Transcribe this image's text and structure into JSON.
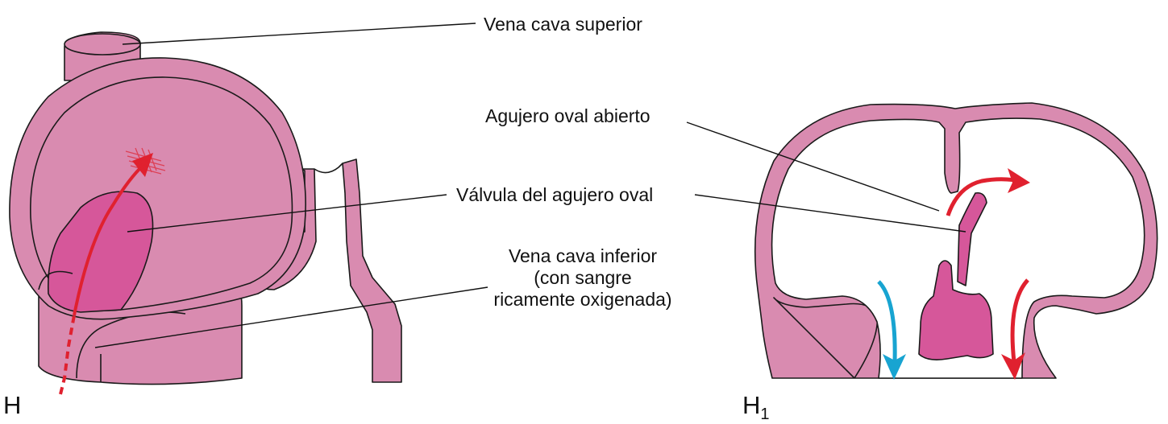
{
  "labels": {
    "vena_cava_superior": "Vena cava superior",
    "agujero_oval_abierto": "Agujero oval abierto",
    "valvula_agujero_oval": "Válvula del agujero oval",
    "vena_cava_inferior": "Vena cava inferior",
    "vena_cava_inferior_note_1": "(con sangre",
    "vena_cava_inferior_note_2": "ricamente oxigenada)"
  },
  "panels": {
    "left": "H",
    "right_letter": "H",
    "right_subscript": "1"
  },
  "colors": {
    "tissue": "#d98bb0",
    "tissue_dark": "#d6579a",
    "outline": "#1a1a1a",
    "oxygenated_arrow": "#e0212f",
    "deoxygenated_arrow": "#18a4d1"
  }
}
